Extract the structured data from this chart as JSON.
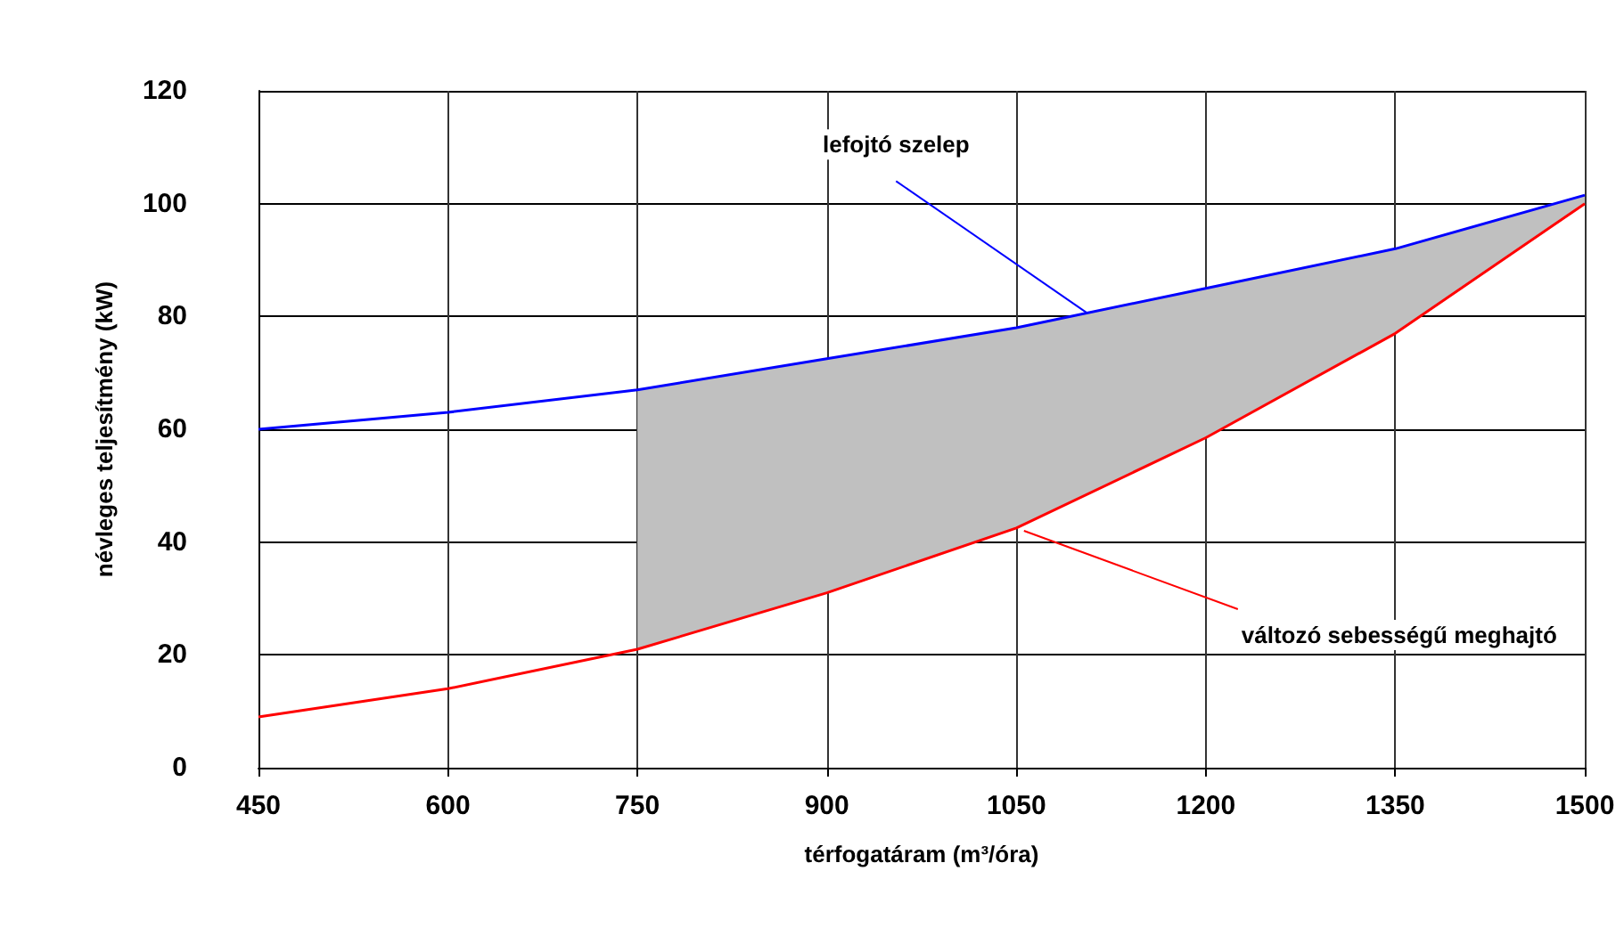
{
  "chart_data": {
    "type": "line",
    "xlabel": "térfogatáram (m³/óra)",
    "ylabel": "névleges teljesítmény (kW)",
    "x": [
      450,
      600,
      750,
      900,
      1050,
      1200,
      1350,
      1500
    ],
    "series": [
      {
        "color": "#0000ff",
        "values": [
          60,
          63,
          67,
          72.5,
          78,
          85,
          92,
          101.5
        ],
        "lower": [
          null,
          null,
          21,
          31,
          42.5,
          58.5,
          77,
          100
        ],
        "upper": [
          null,
          null,
          67,
          72.5,
          78,
          85,
          92,
          101.5
        ]
      },
      {
        "color": "#ff0000",
        "values": [
          9,
          14,
          21,
          31,
          42.5,
          58.5,
          77,
          100
        ]
      }
    ],
    "xlim": [
      450,
      1500
    ],
    "xticks": [
      450,
      600,
      750,
      900,
      1050,
      1200,
      1350,
      1500
    ],
    "ylim": [
      0,
      120
    ],
    "yticks": [
      0,
      20,
      40,
      60,
      80,
      100,
      120
    ],
    "grid": true,
    "marker": "none",
    "line_style": "solid",
    "annotations": [
      {
        "text": "lefojtó szelep",
        "x": 1110,
        "y": 80
      },
      {
        "text": "változó sebességű meghajtó",
        "x": 1056,
        "y": 42
      }
    ]
  }
}
